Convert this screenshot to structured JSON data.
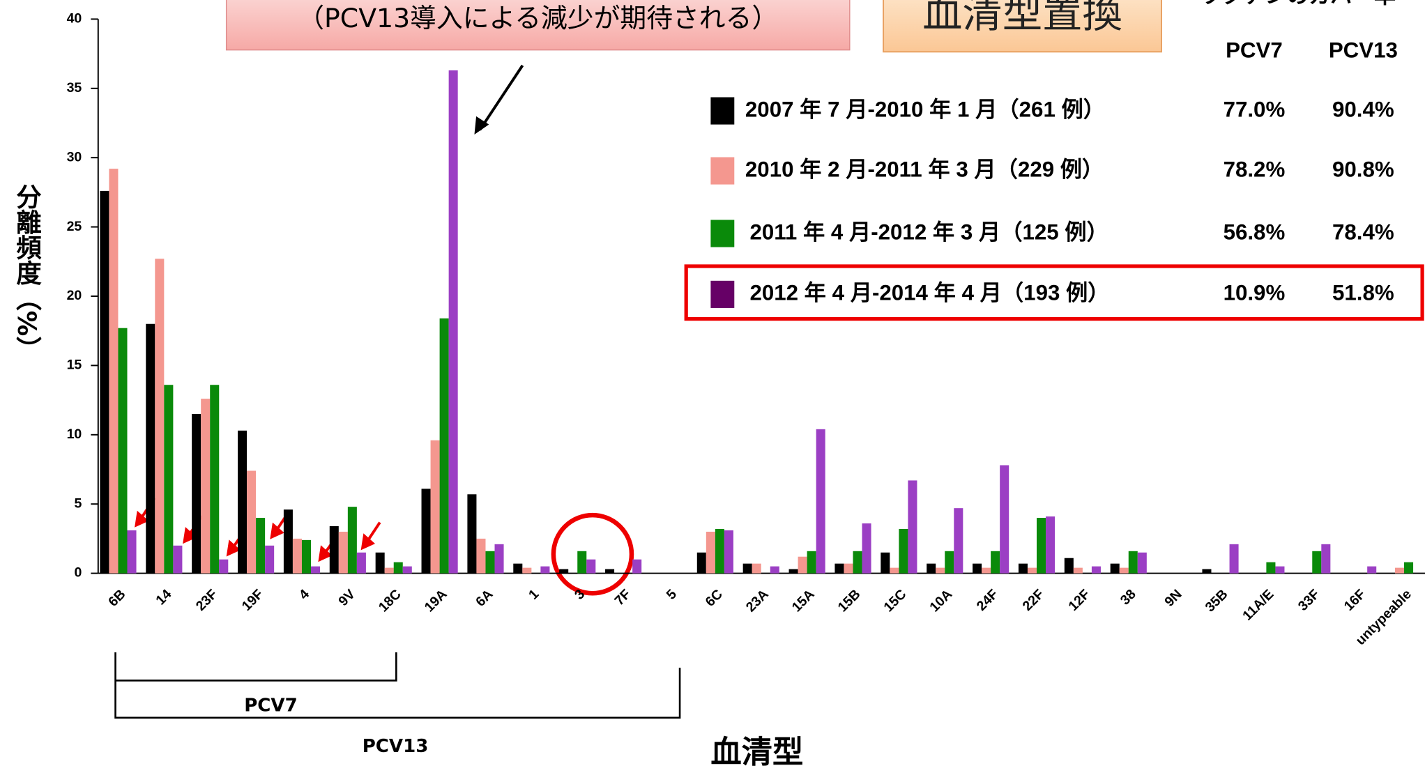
{
  "chart_data": {
    "type": "bar",
    "y_label": "分離頻度（%）",
    "x_label": "血清型",
    "annotations": [
      "（PCV13導入による減少が期待される）",
      "血清型置換",
      "ワクチンのカバー率"
    ],
    "brackets": [
      "PCV7",
      "PCV13"
    ],
    "coverage_headers": [
      "PCV7",
      "PCV13"
    ],
    "coverage": [
      [
        "77.0%",
        "90.4%"
      ],
      [
        "78.2%",
        "90.8%"
      ],
      [
        "56.8%",
        "78.4%"
      ],
      [
        "10.9%",
        "51.8%"
      ]
    ],
    "categories": [
      "6B",
      "14",
      "23F",
      "19F",
      "4",
      "9V",
      "18C",
      "19A",
      "6A",
      "1",
      "3",
      "7F",
      "5",
      "6C",
      "23A",
      "15A",
      "15B",
      "15C",
      "10A",
      "24F",
      "22F",
      "12F",
      "38",
      "9N",
      "35B",
      "11A/E",
      "33F",
      "16F",
      "untypeable"
    ],
    "series": [
      {
        "name": "2007 年 7 月-2010 年 1 月（261 例）",
        "color": "#000000",
        "values": [
          27.6,
          18.0,
          11.5,
          10.3,
          4.6,
          3.4,
          1.5,
          6.1,
          5.7,
          0.7,
          0.3,
          0.3,
          0,
          1.5,
          0.7,
          0.3,
          0.7,
          1.5,
          0.7,
          0.7,
          0.7,
          1.1,
          0.7,
          0,
          0.3,
          0,
          0,
          0,
          0
        ]
      },
      {
        "name": "2010 年 2 月-2011 年 3 月（229 例）",
        "color": "#f4978f",
        "values": [
          29.2,
          22.7,
          12.6,
          7.4,
          2.5,
          3.0,
          0.4,
          9.6,
          2.5,
          0.4,
          0,
          0,
          0,
          3.0,
          0.7,
          1.2,
          0.7,
          0.4,
          0.4,
          0.4,
          0.4,
          0.4,
          0.4,
          0,
          0,
          0,
          0,
          0,
          0.4
        ]
      },
      {
        "name": "2011 年 4 月-2012 年 3 月（125 例）",
        "color": "#0a8a0a",
        "values": [
          17.7,
          13.6,
          13.6,
          4.0,
          2.4,
          4.8,
          0.8,
          18.4,
          1.6,
          0,
          1.6,
          0,
          0,
          3.2,
          0,
          1.6,
          1.6,
          3.2,
          1.6,
          1.6,
          4.0,
          0,
          1.6,
          0,
          0,
          0.8,
          1.6,
          0,
          0.8
        ]
      },
      {
        "name": "2012 年 4 月-2014 年 4 月（193 例）",
        "color": "#9b3fc4",
        "values": [
          3.1,
          2.0,
          1.0,
          2.0,
          0.5,
          1.5,
          0.5,
          36.3,
          2.1,
          0.5,
          1.0,
          1.0,
          0,
          3.1,
          0.5,
          10.4,
          3.6,
          6.7,
          4.7,
          7.8,
          4.1,
          0.5,
          1.5,
          0,
          2.1,
          0.5,
          2.1,
          0.5,
          0
        ]
      }
    ],
    "ylim": [
      0,
      40
    ],
    "yticks": [
      0,
      5,
      10,
      15,
      20,
      25,
      30,
      35,
      40
    ]
  }
}
